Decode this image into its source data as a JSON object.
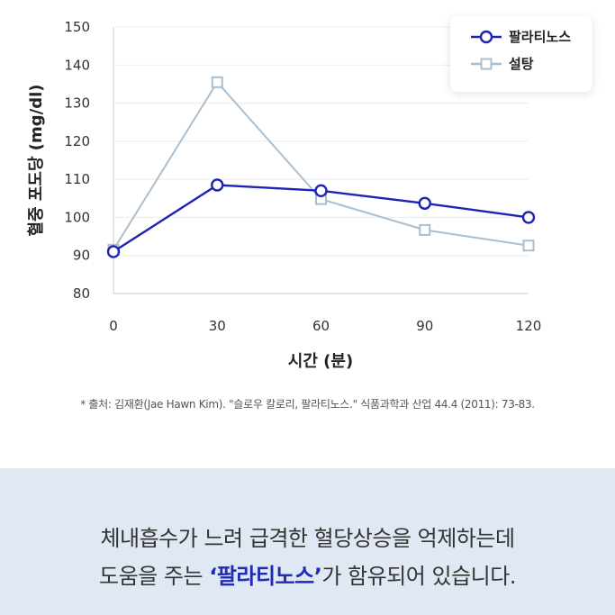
{
  "chart_data": {
    "type": "line",
    "x": [
      0,
      30,
      60,
      90,
      120
    ],
    "xlabel": "시간 (분)",
    "ylabel": "혈중 포도당 (mg/dl)",
    "ylim": [
      80,
      150
    ],
    "yticks": [
      80,
      90,
      100,
      110,
      120,
      130,
      140,
      150
    ],
    "xticks": [
      "0",
      "30",
      "60",
      "90",
      "120"
    ],
    "grid": "horizontal",
    "legend_position": "top-right",
    "series": [
      {
        "name": "팔라티노스",
        "values": [
          91,
          108.5,
          107,
          103.7,
          100
        ],
        "color": "#1f23b3",
        "marker": "circle"
      },
      {
        "name": "설탕",
        "values": [
          91.5,
          135.5,
          104.8,
          96.7,
          92.6
        ],
        "color": "#a9bfd0",
        "marker": "square"
      }
    ]
  },
  "source": "* 출처: 김재환(Jae Hawn Kim). \"슬로우 칼로리, 팔라티노스.\" 식품과학과 산업 44.4 (2011): 73-83.",
  "caption": {
    "line1": "체내흡수가 느려 급격한 혈당상승을 억제하는데",
    "line2_pre": "도움을 주는 ",
    "line2_highlight": "‘팔라티노스’",
    "line2_post": "가 함유되어 있습니다."
  }
}
